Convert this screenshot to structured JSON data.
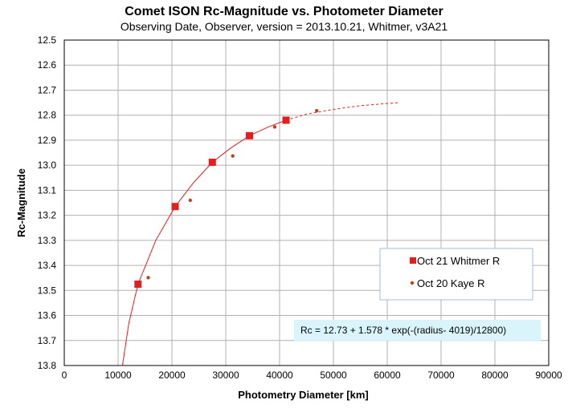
{
  "chart_data": {
    "type": "scatter",
    "title": "Comet ISON Rc-Magnitude vs. Photometer Diameter",
    "subtitle": "Observing Date, Observer, version = 2013.10.21, Whitmer, v3A21",
    "xlabel": "Photometry Diameter  [km]",
    "ylabel": "Rc-Magnitude",
    "xlim": [
      0,
      90000
    ],
    "ylim": [
      12.5,
      13.8
    ],
    "y_inverted": true,
    "x_ticks": [
      0,
      10000,
      20000,
      30000,
      40000,
      50000,
      60000,
      70000,
      80000,
      90000
    ],
    "x_tick_labels": [
      "0",
      "10000",
      "20000",
      "30000",
      "40000",
      "50000",
      "60000",
      "70000",
      "80000",
      "90000"
    ],
    "y_ticks": [
      12.5,
      12.6,
      12.7,
      12.8,
      12.9,
      13.0,
      13.1,
      13.2,
      13.3,
      13.4,
      13.5,
      13.6,
      13.7,
      13.8
    ],
    "y_tick_labels": [
      "12.5",
      "12.6",
      "12.7",
      "12.8",
      "12.9",
      "13.0",
      "13.1",
      "13.2",
      "13.3",
      "13.4",
      "13.5",
      "13.6",
      "13.7",
      "13.8"
    ],
    "grid": true,
    "legend_position": "lower-right",
    "series": [
      {
        "name": "Oct 21 Whitmer R",
        "marker": "square",
        "color": "#e31e1e",
        "x": [
          13700,
          20600,
          27500,
          34400,
          41200
        ],
        "y": [
          13.475,
          13.165,
          12.988,
          12.882,
          12.82
        ]
      },
      {
        "name": "Oct 20 Kaye R",
        "marker": "dot",
        "color": "#b5481a",
        "x": [
          15600,
          23400,
          31300,
          39100,
          46900
        ],
        "y": [
          13.449,
          13.14,
          12.963,
          12.847,
          12.782
        ]
      }
    ],
    "fit_equation": "Rc = 12.73 + 1.578 * exp(-(radius- 4019)/12800)",
    "fit_curve": {
      "color": "#e31e1e",
      "points": [
        [
          10800,
          13.8
        ],
        [
          12000,
          13.63
        ],
        [
          13700,
          13.475
        ],
        [
          17000,
          13.3
        ],
        [
          20600,
          13.165
        ],
        [
          24000,
          13.07
        ],
        [
          27500,
          12.988
        ],
        [
          31000,
          12.93
        ],
        [
          34400,
          12.882
        ],
        [
          37800,
          12.848
        ],
        [
          41200,
          12.82
        ]
      ],
      "extrapolation": [
        [
          41200,
          12.82
        ],
        [
          45000,
          12.796
        ],
        [
          50000,
          12.777
        ],
        [
          55000,
          12.762
        ],
        [
          62000,
          12.75
        ]
      ]
    }
  },
  "colors": {
    "legend_bg": "#ffffff",
    "legend_border": "#a6bcd4",
    "equation_bg": "#d9f5fb",
    "grid": "#b0b0b0"
  }
}
